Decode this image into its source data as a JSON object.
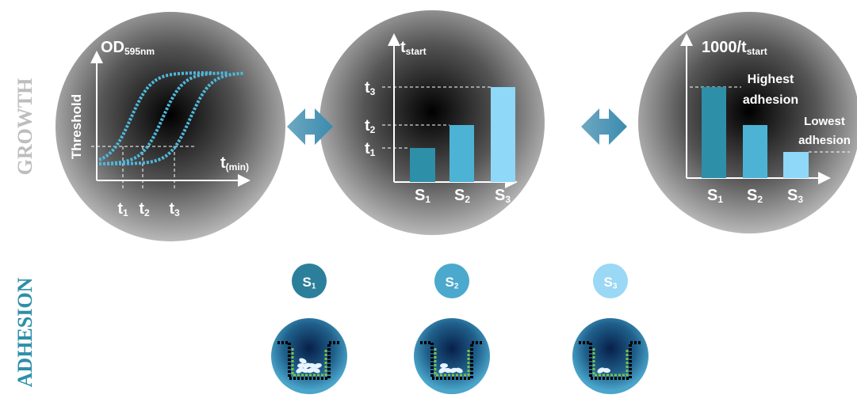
{
  "sections": {
    "growth": "GROWTH",
    "adhesion": "ADHESION"
  },
  "growth_curves": {
    "y_label": {
      "base": "OD",
      "sub": "595nm"
    },
    "threshold": "Threshold",
    "x_label": {
      "base": "t",
      "sub": "(min)"
    },
    "ticks": [
      {
        "base": "t",
        "sub": "1"
      },
      {
        "base": "t",
        "sub": "2"
      },
      {
        "base": "t",
        "sub": "3"
      }
    ]
  },
  "tstart_bars": {
    "y_label": {
      "base": "t",
      "sub": "start"
    },
    "y_ticks": [
      {
        "base": "t",
        "sub": "3"
      },
      {
        "base": "t",
        "sub": "2"
      },
      {
        "base": "t",
        "sub": "1"
      }
    ],
    "categories": [
      {
        "base": "S",
        "sub": "1"
      },
      {
        "base": "S",
        "sub": "2"
      },
      {
        "base": "S",
        "sub": "3"
      }
    ]
  },
  "adhesion_bars": {
    "y_label": {
      "base": "1000/t",
      "sub": "start"
    },
    "highest": [
      "Highest",
      "adhesion"
    ],
    "lowest": [
      "Lowest",
      "adhesion"
    ],
    "categories": [
      {
        "base": "S",
        "sub": "1"
      },
      {
        "base": "S",
        "sub": "2"
      },
      {
        "base": "S",
        "sub": "3"
      }
    ]
  },
  "strains": [
    {
      "base": "S",
      "sub": "1"
    },
    {
      "base": "S",
      "sub": "2"
    },
    {
      "base": "S",
      "sub": "3"
    }
  ]
}
